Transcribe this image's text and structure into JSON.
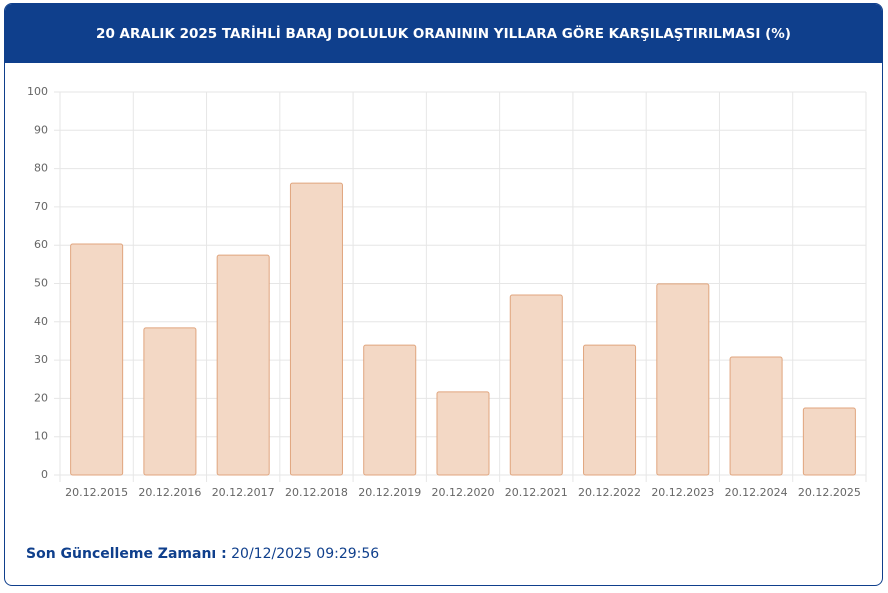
{
  "chart_data": {
    "type": "bar",
    "title": "20 ARALIK 2025 TARİHLİ BARAJ DOLULUK ORANININ YILLARA GÖRE KARŞILAŞTIRILMASI (%)",
    "categories": [
      "20.12.2015",
      "20.12.2016",
      "20.12.2017",
      "20.12.2018",
      "20.12.2019",
      "20.12.2020",
      "20.12.2021",
      "20.12.2022",
      "20.12.2023",
      "20.12.2024",
      "20.12.2025"
    ],
    "values": [
      60.3,
      38.4,
      57.4,
      76.2,
      33.9,
      21.7,
      47.0,
      33.9,
      49.9,
      30.8,
      17.5
    ],
    "color": "#f3d8c5",
    "border_color": "#e0a57e",
    "ylim": [
      0,
      100
    ],
    "yticks": [
      0,
      10,
      20,
      30,
      40,
      50,
      60,
      70,
      80,
      90,
      100
    ],
    "grid": true
  },
  "footer": {
    "label": "Son Güncelleme Zamanı :",
    "value": "20/12/2025 09:29:56"
  }
}
